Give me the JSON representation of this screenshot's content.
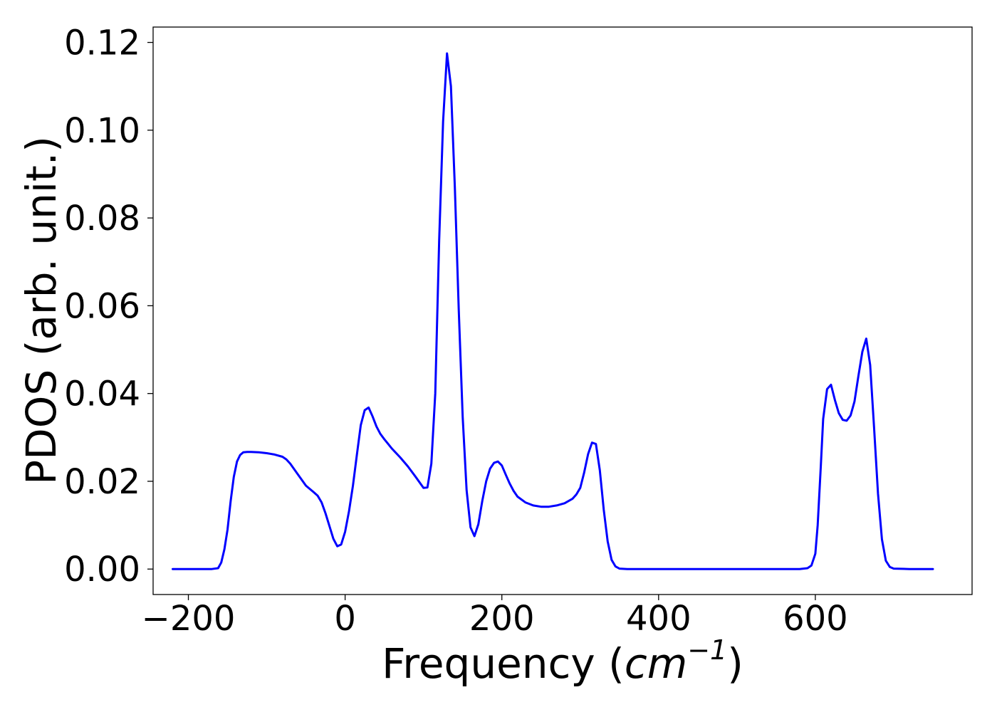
{
  "chart_data": {
    "type": "line",
    "xlabel_prefix": "Frequency (",
    "xlabel_var": "cm",
    "xlabel_sup": "−1",
    "xlabel_suffix": ")",
    "ylabel": "PDOS (arb. unit.)",
    "xlim": [
      -245,
      800
    ],
    "ylim": [
      -0.0058,
      0.1235
    ],
    "xticks": [
      -200,
      0,
      200,
      400,
      600
    ],
    "xtick_labels": [
      "−200",
      "0",
      "200",
      "400",
      "600"
    ],
    "yticks": [
      0,
      0.02,
      0.04,
      0.06,
      0.08,
      0.1,
      0.12
    ],
    "ytick_labels": [
      "0.00",
      "0.02",
      "0.04",
      "0.06",
      "0.08",
      "0.10",
      "0.12"
    ],
    "grid": false,
    "line_color": "#0000ff",
    "series": [
      {
        "x": [
          -220,
          -200,
          -180,
          -170,
          -162,
          -158,
          -154,
          -150,
          -146,
          -142,
          -138,
          -134,
          -130,
          -125,
          -120,
          -110,
          -100,
          -90,
          -80,
          -75,
          -70,
          -60,
          -50,
          -40,
          -35,
          -30,
          -25,
          -20,
          -15,
          -10,
          -5,
          0,
          5,
          10,
          15,
          20,
          25,
          30,
          35,
          40,
          45,
          50,
          55,
          60,
          70,
          80,
          90,
          100,
          105,
          110,
          115,
          120,
          125,
          130,
          135,
          140,
          145,
          150,
          155,
          160,
          165,
          170,
          175,
          180,
          185,
          190,
          195,
          200,
          205,
          210,
          215,
          220,
          230,
          240,
          250,
          260,
          270,
          280,
          290,
          295,
          300,
          305,
          310,
          315,
          320,
          325,
          330,
          335,
          340,
          345,
          350,
          360,
          400,
          500,
          580,
          590,
          595,
          600,
          603,
          607,
          610,
          615,
          620,
          625,
          630,
          635,
          640,
          645,
          650,
          655,
          660,
          665,
          670,
          675,
          680,
          685,
          690,
          695,
          700,
          720,
          750
        ],
        "y": [
          0,
          0,
          0,
          0,
          0.0002,
          0.0015,
          0.0045,
          0.009,
          0.0155,
          0.021,
          0.0245,
          0.026,
          0.0266,
          0.0267,
          0.0267,
          0.0266,
          0.0264,
          0.0261,
          0.0256,
          0.025,
          0.024,
          0.0215,
          0.019,
          0.0175,
          0.0167,
          0.0152,
          0.0127,
          0.0098,
          0.0069,
          0.0052,
          0.0056,
          0.0085,
          0.0132,
          0.019,
          0.026,
          0.0328,
          0.0362,
          0.0368,
          0.0348,
          0.0325,
          0.0308,
          0.0296,
          0.0285,
          0.0274,
          0.0255,
          0.0234,
          0.021,
          0.0185,
          0.0186,
          0.024,
          0.04,
          0.075,
          0.102,
          0.1175,
          0.11,
          0.087,
          0.059,
          0.0347,
          0.018,
          0.0095,
          0.0075,
          0.0102,
          0.0155,
          0.02,
          0.0229,
          0.0242,
          0.0245,
          0.0236,
          0.0215,
          0.0195,
          0.0178,
          0.0165,
          0.0152,
          0.0145,
          0.0142,
          0.0142,
          0.0145,
          0.015,
          0.016,
          0.017,
          0.0185,
          0.022,
          0.0262,
          0.0288,
          0.0285,
          0.0225,
          0.0135,
          0.0063,
          0.0021,
          0.0006,
          0.0001,
          0,
          0,
          0,
          0,
          0.0002,
          0.0008,
          0.0035,
          0.01,
          0.0235,
          0.0342,
          0.041,
          0.042,
          0.0385,
          0.0355,
          0.034,
          0.0338,
          0.035,
          0.0382,
          0.044,
          0.0495,
          0.0525,
          0.0465,
          0.0322,
          0.0172,
          0.0068,
          0.0019,
          0.0005,
          0.0001,
          0,
          0
        ]
      }
    ]
  }
}
